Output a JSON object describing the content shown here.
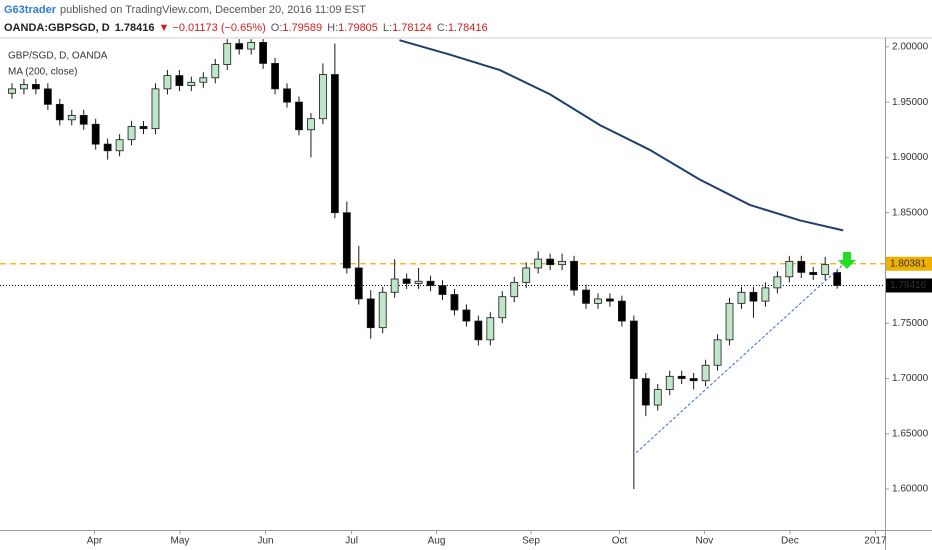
{
  "header": {
    "author": "G63trader",
    "published": "published on TradingView.com, December 20, 2016 11:09 EST"
  },
  "chart_data": {
    "type": "candlestick",
    "title": "GBP/SGD, D, OANDA",
    "symbol": "OANDA:GBPSGD, D",
    "change_marker": "▼",
    "change_label": "−0.01173 (−0.65%)",
    "ohlc_labels": [
      "O:",
      "H:",
      "L:",
      "C:"
    ],
    "up_color": "#bfe6c8",
    "down_color": "#000000",
    "outline_color": "#1a1a1a",
    "open": [
      1.958,
      1.962,
      1.966,
      1.962,
      1.948,
      1.934,
      1.938,
      1.93,
      1.912,
      1.906,
      1.916,
      1.928,
      1.926,
      1.962,
      1.974,
      1.965,
      1.968,
      1.972,
      1.984,
      2.003,
      1.998,
      2.004,
      1.985,
      1.962,
      1.95,
      1.925,
      1.935,
      1.975,
      1.85,
      1.8,
      1.772,
      1.746,
      1.778,
      1.79,
      1.786,
      1.788,
      1.784,
      1.776,
      1.762,
      1.752,
      1.735,
      1.755,
      1.774,
      1.787,
      1.8,
      1.808,
      1.803,
      1.806,
      1.78,
      1.768,
      1.772,
      1.77,
      1.752,
      1.7,
      1.676,
      1.69,
      1.702,
      1.7,
      1.698,
      1.712,
      1.735,
      1.768,
      1.778,
      1.77,
      1.782,
      1.792,
      1.806,
      1.796,
      1.794,
      1.79589
    ],
    "high": [
      1.967,
      1.971,
      1.971,
      1.967,
      1.953,
      1.943,
      1.943,
      1.935,
      1.917,
      1.921,
      1.933,
      1.933,
      1.967,
      1.979,
      1.979,
      1.973,
      1.977,
      1.989,
      2.007,
      2.007,
      2.007,
      2.007,
      1.99,
      1.967,
      1.955,
      1.94,
      1.985,
      2.003,
      1.86,
      1.82,
      1.78,
      1.783,
      1.808,
      1.795,
      1.8,
      1.793,
      1.789,
      1.781,
      1.767,
      1.757,
      1.76,
      1.779,
      1.792,
      1.805,
      1.815,
      1.813,
      1.813,
      1.811,
      1.785,
      1.777,
      1.777,
      1.775,
      1.757,
      1.705,
      1.695,
      1.707,
      1.707,
      1.705,
      1.717,
      1.74,
      1.773,
      1.783,
      1.783,
      1.787,
      1.797,
      1.811,
      1.811,
      1.801,
      1.81,
      1.79805
    ],
    "low": [
      1.953,
      1.957,
      1.957,
      1.943,
      1.929,
      1.929,
      1.925,
      1.907,
      1.898,
      1.901,
      1.911,
      1.921,
      1.921,
      1.957,
      1.96,
      1.96,
      1.963,
      1.967,
      1.979,
      1.993,
      1.993,
      1.98,
      1.957,
      1.945,
      1.92,
      1.9,
      1.93,
      1.845,
      1.795,
      1.767,
      1.736,
      1.741,
      1.773,
      1.781,
      1.781,
      1.779,
      1.771,
      1.757,
      1.747,
      1.73,
      1.73,
      1.75,
      1.769,
      1.782,
      1.795,
      1.798,
      1.798,
      1.775,
      1.763,
      1.763,
      1.765,
      1.747,
      1.6,
      1.666,
      1.671,
      1.685,
      1.695,
      1.69,
      1.693,
      1.707,
      1.73,
      1.763,
      1.755,
      1.765,
      1.777,
      1.787,
      1.791,
      1.789,
      1.789,
      1.78124
    ],
    "close": [
      1.962,
      1.966,
      1.962,
      1.948,
      1.934,
      1.938,
      1.93,
      1.912,
      1.906,
      1.916,
      1.928,
      1.926,
      1.962,
      1.974,
      1.965,
      1.968,
      1.972,
      1.984,
      2.003,
      1.998,
      2.004,
      1.985,
      1.962,
      1.95,
      1.925,
      1.935,
      1.975,
      1.85,
      1.8,
      1.772,
      1.746,
      1.778,
      1.79,
      1.786,
      1.788,
      1.784,
      1.776,
      1.762,
      1.752,
      1.735,
      1.755,
      1.774,
      1.787,
      1.8,
      1.808,
      1.803,
      1.806,
      1.78,
      1.768,
      1.772,
      1.77,
      1.752,
      1.7,
      1.676,
      1.69,
      1.702,
      1.7,
      1.698,
      1.712,
      1.735,
      1.768,
      1.778,
      1.77,
      1.782,
      1.792,
      1.806,
      1.796,
      1.794,
      1.803,
      1.78416
    ],
    "series": [
      {
        "name": "MA (200, close)",
        "color": "#1d3f6e",
        "x": [
          32.4,
          36.6,
          40.8,
          45.0,
          49.2,
          53.3,
          57.5,
          61.7,
          65.9,
          69.5
        ],
        "values": [
          2.006,
          1.993,
          1.979,
          1.957,
          1.929,
          1.907,
          1.88,
          1.857,
          1.843,
          1.834
        ]
      }
    ],
    "trendline": {
      "color": "#3f68d8",
      "x": [
        52.2,
        69.5
      ],
      "values": [
        1.633,
        1.803
      ]
    },
    "level": {
      "value": 1.80381,
      "label": "1.80381",
      "color": "#f0b000"
    },
    "xlim": [
      -1,
      73
    ],
    "ylim": [
      1.563,
      2.008
    ],
    "xticks": [
      {
        "value": 6.9,
        "label": "Apr"
      },
      {
        "value": 14.05,
        "label": "May"
      },
      {
        "value": 21.2,
        "label": "Jun"
      },
      {
        "value": 28.4,
        "label": "Jul"
      },
      {
        "value": 35.5,
        "label": "Aug"
      },
      {
        "value": 43.4,
        "label": "Sep"
      },
      {
        "value": 50.8,
        "label": "Oct"
      },
      {
        "value": 57.9,
        "label": "Nov"
      },
      {
        "value": 65.05,
        "label": "Dec"
      },
      {
        "value": 72.2,
        "label": "2017"
      }
    ],
    "yticks": [
      {
        "value": 1.6,
        "label": "1.60000"
      },
      {
        "value": 1.65,
        "label": "1.65000"
      },
      {
        "value": 1.7,
        "label": "1.70000"
      },
      {
        "value": 1.75,
        "label": "1.75000"
      },
      {
        "value": 1.8,
        "label": "1.80000"
      },
      {
        "value": 1.85,
        "label": "1.85000"
      },
      {
        "value": 1.9,
        "label": "1.90000"
      },
      {
        "value": 1.95,
        "label": "1.95000"
      },
      {
        "value": 2.0,
        "label": "2.00000"
      }
    ]
  }
}
